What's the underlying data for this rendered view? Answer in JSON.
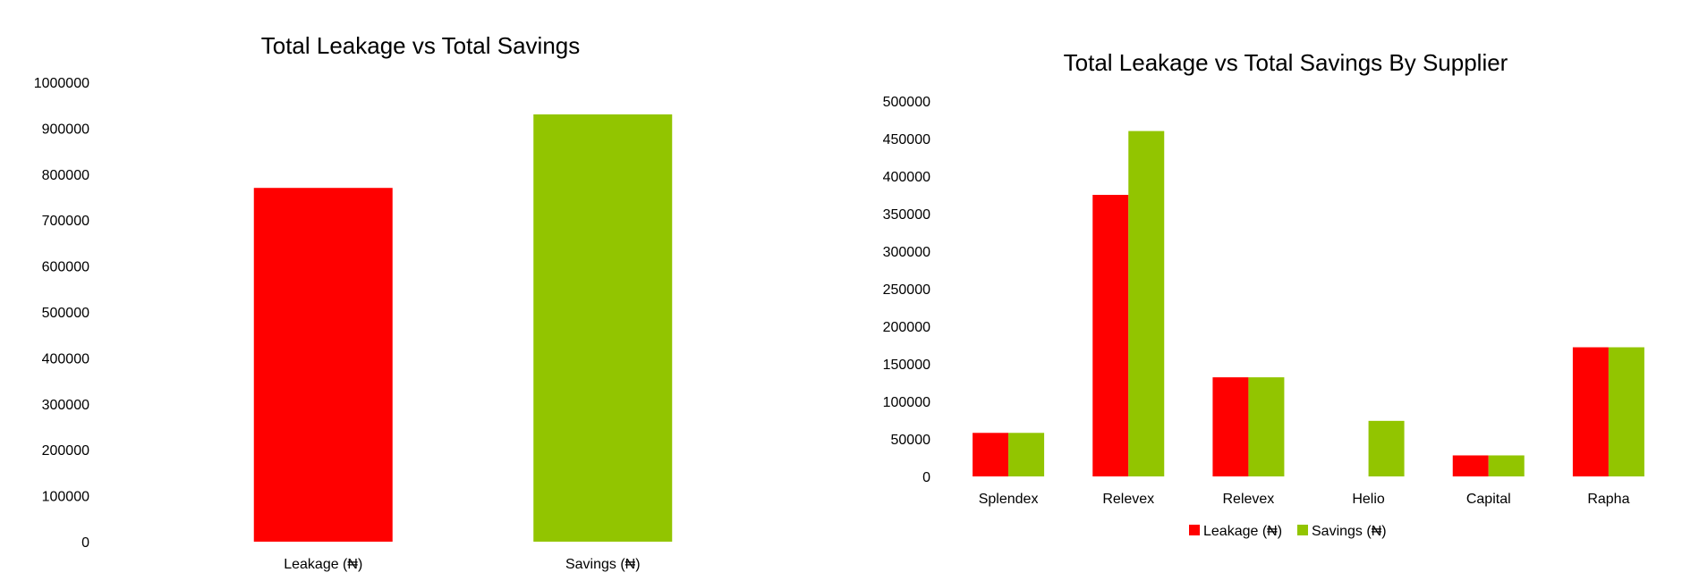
{
  "chart_data": [
    {
      "type": "bar",
      "title": "Total Leakage vs Total Savings",
      "categories": [
        "Leakage (₦)",
        "Savings (₦)"
      ],
      "values": [
        770000,
        930000
      ],
      "bar_colors": [
        "#FF0000",
        "#92C500"
      ],
      "ylim": [
        0,
        1000000
      ],
      "yticks": [
        0,
        100000,
        200000,
        300000,
        400000,
        500000,
        600000,
        700000,
        800000,
        900000,
        1000000
      ],
      "ytick_labels": [
        "0",
        "100000",
        "200000",
        "300000",
        "400000",
        "500000",
        "600000",
        "700000",
        "800000",
        "900000",
        "1000000"
      ],
      "grid": false,
      "legend": "none"
    },
    {
      "type": "bar",
      "title": "Total Leakage vs Total Savings By Supplier",
      "categories": [
        "Splendex",
        "Relevex",
        "Relevex",
        "Helio",
        "Capital",
        "Rapha"
      ],
      "series": [
        {
          "name": "Leakage (₦)",
          "color": "#FF0000",
          "values": [
            58000,
            375000,
            132000,
            0,
            28000,
            172000
          ]
        },
        {
          "name": "Savings (₦)",
          "color": "#92C500",
          "values": [
            58000,
            460000,
            132000,
            74000,
            28000,
            172000
          ]
        }
      ],
      "ylim": [
        0,
        500000
      ],
      "yticks": [
        0,
        50000,
        100000,
        150000,
        200000,
        250000,
        300000,
        350000,
        400000,
        450000,
        500000
      ],
      "ytick_labels": [
        "0",
        "50000",
        "100000",
        "150000",
        "200000",
        "250000",
        "300000",
        "350000",
        "400000",
        "450000",
        "500000"
      ],
      "grid": false,
      "legend": "bottom"
    }
  ]
}
